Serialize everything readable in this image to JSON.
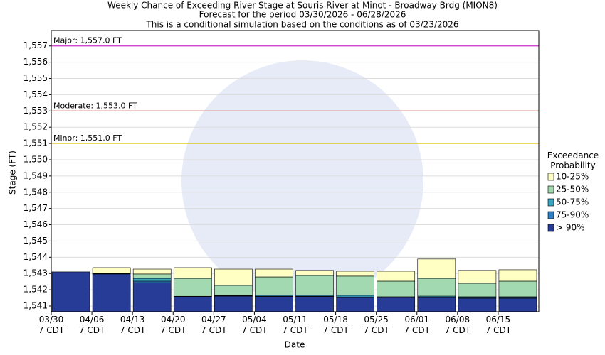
{
  "chart_data": {
    "type": "bar",
    "title": "Weekly Chance of Exceeding River Stage at Souris River at Minot - Broadway Brdg (MION8)",
    "subtitle": "Forecast for the period 03/30/2026 - 06/28/2026",
    "subtitle2": "This is a conditional simulation based on the conditions as of 03/23/2026",
    "x_label": "Date",
    "y_label": "Stage (FT)",
    "legend_title": "Exceedance\nProbability",
    "categories": [
      "03/30\n7 CDT",
      "04/06\n7 CDT",
      "04/13\n7 CDT",
      "04/20\n7 CDT",
      "04/27\n7 CDT",
      "05/04\n7 CDT",
      "05/11\n7 CDT",
      "05/18\n7 CDT",
      "05/25\n7 CDT",
      "06/01\n7 CDT",
      "06/08\n7 CDT",
      "06/15\n7 CDT"
    ],
    "series": [
      {
        "name": "> 90%",
        "color": "#263c96",
        "values": [
          1543.1,
          1542.97,
          1542.44,
          1541.57,
          1541.61,
          1541.57,
          1541.57,
          1541.52,
          1541.52,
          1541.52,
          1541.48,
          1541.48
        ]
      },
      {
        "name": "75-90%",
        "color": "#2e7fc4",
        "values": [
          1543.1,
          1542.97,
          1542.53,
          1541.58,
          1541.62,
          1541.6,
          1541.6,
          1541.56,
          1541.54,
          1541.55,
          1541.52,
          1541.52
        ]
      },
      {
        "name": "50-75%",
        "color": "#3aa5c0",
        "values": [
          1543.1,
          1542.98,
          1542.7,
          1541.6,
          1541.65,
          1541.66,
          1541.66,
          1541.66,
          1541.57,
          1541.61,
          1541.57,
          1541.57
        ]
      },
      {
        "name": "25-50%",
        "color": "#a3d9b1",
        "values": [
          1543.1,
          1543.0,
          1542.97,
          1542.7,
          1542.27,
          1542.79,
          1542.88,
          1542.84,
          1542.53,
          1542.7,
          1542.4,
          1542.53
        ]
      },
      {
        "name": "10-25%",
        "color": "#ffffc4",
        "values": [
          1543.1,
          1543.36,
          1543.27,
          1543.36,
          1543.27,
          1543.27,
          1543.19,
          1543.14,
          1543.14,
          1543.89,
          1543.19,
          1543.23
        ]
      }
    ],
    "flood_stages": [
      {
        "value": 1557,
        "label": "Major: 1,557.0 FT",
        "color": "#cc33cc"
      },
      {
        "value": 1553,
        "label": "Moderate: 1,553.0 FT",
        "color": "#dd3355"
      },
      {
        "value": 1551,
        "label": "Minor: 1,551.0 FT",
        "color": "#e6c200"
      }
    ],
    "ylim": [
      1540.65,
      1557.95
    ],
    "yticks": [
      {
        "value": 1541,
        "label": "1,541"
      },
      {
        "value": 1542,
        "label": "1,542"
      },
      {
        "value": 1543,
        "label": "1,543"
      },
      {
        "value": 1544,
        "label": "1,544"
      },
      {
        "value": 1545,
        "label": "1,545"
      },
      {
        "value": 1546,
        "label": "1,546"
      },
      {
        "value": 1547,
        "label": "1,547"
      },
      {
        "value": 1548,
        "label": "1,548"
      },
      {
        "value": 1549,
        "label": "1,549"
      },
      {
        "value": 1550,
        "label": "1,550"
      },
      {
        "value": 1551,
        "label": "1,551"
      },
      {
        "value": 1552,
        "label": "1,552"
      },
      {
        "value": 1553,
        "label": "1,553"
      },
      {
        "value": 1554,
        "label": "1,554"
      },
      {
        "value": 1555,
        "label": "1,555"
      },
      {
        "value": 1556,
        "label": "1,556"
      },
      {
        "value": 1557,
        "label": "1,557"
      }
    ],
    "grid": true
  }
}
